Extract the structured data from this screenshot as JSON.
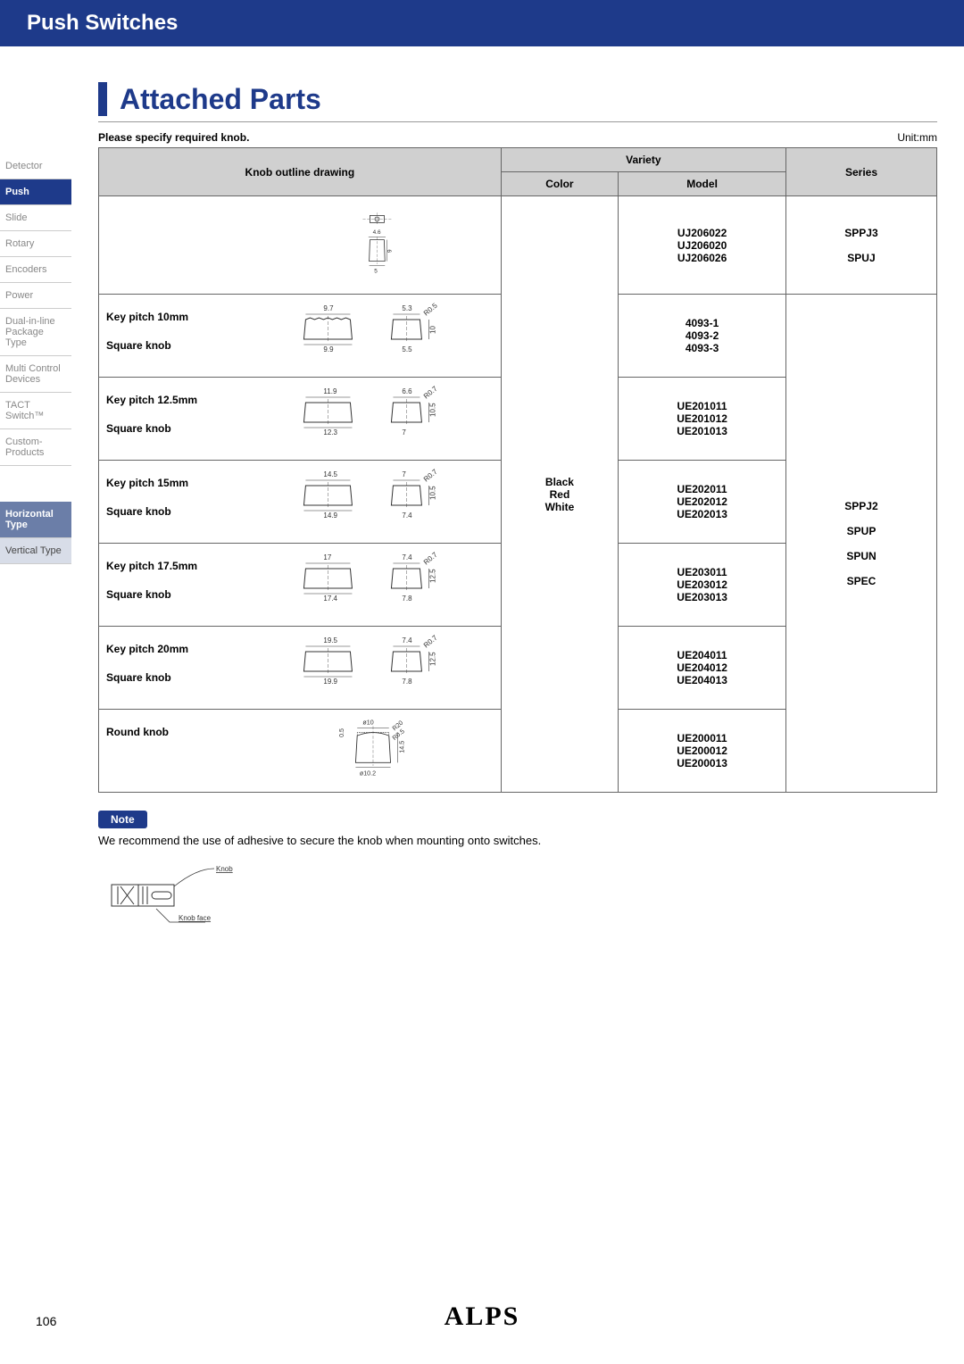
{
  "header": {
    "category": "Push Switches"
  },
  "section": {
    "title": "Attached Parts"
  },
  "tableMeta": {
    "caption": "Please specify required knob.",
    "unit": "Unit:mm"
  },
  "columns": {
    "knob": "Knob outline drawing",
    "variety": "Variety",
    "color": "Color",
    "model": "Model",
    "series": "Series"
  },
  "sidebar": {
    "items": [
      {
        "label": "Detector",
        "active": false
      },
      {
        "label": "Push",
        "active": true
      },
      {
        "label": "Slide",
        "active": false
      },
      {
        "label": "Rotary",
        "active": false
      },
      {
        "label": "Encoders",
        "active": false
      },
      {
        "label": "Power",
        "active": false
      },
      {
        "label": "Dual-in-line Package Type",
        "active": false
      },
      {
        "label": "Multi Control Devices",
        "active": false
      },
      {
        "label": "TACT Switch™",
        "active": false
      },
      {
        "label": "Custom-Products",
        "active": false
      }
    ],
    "sub": [
      {
        "label": "Horizontal Type",
        "kind": "sub-active"
      },
      {
        "label": "Vertical Type",
        "kind": "sub"
      }
    ]
  },
  "colorValues": "Black\nRed\nWhite",
  "rows": [
    {
      "labels": [],
      "dims": {
        "w1": "4.6",
        "h1": "9",
        "w2": "5"
      },
      "models": "UJ206022\nUJ206020\nUJ206026",
      "series": "SPPJ3\n\nSPUJ"
    },
    {
      "labels": [
        "Key pitch 10mm",
        "Square knob"
      ],
      "dims": {
        "w1": "9.7",
        "w2": "9.9",
        "s1": "5.3",
        "s2": "5.5",
        "h": "10",
        "r": "R0.5"
      },
      "models": "4093-1\n4093-2\n4093-3"
    },
    {
      "labels": [
        "Key pitch 12.5mm",
        "Square knob"
      ],
      "dims": {
        "w1": "11.9",
        "w2": "12.3",
        "s1": "6.6",
        "s2": "7",
        "h": "10.5",
        "r": "R0.7"
      },
      "models": "UE201011\nUE201012\nUE201013"
    },
    {
      "labels": [
        "Key pitch 15mm",
        "Square knob"
      ],
      "dims": {
        "w1": "14.5",
        "w2": "14.9",
        "s1": "7",
        "s2": "7.4",
        "h": "10.5",
        "r": "R0.7"
      },
      "models": "UE202011\nUE202012\nUE202013"
    },
    {
      "labels": [
        "Key pitch 17.5mm",
        "Square knob"
      ],
      "dims": {
        "w1": "17",
        "w2": "17.4",
        "s1": "7.4",
        "s2": "7.8",
        "h": "12.5",
        "r": "R0.7"
      },
      "models": "UE203011\nUE203012\nUE203013"
    },
    {
      "labels": [
        "Key pitch 20mm",
        "Square knob"
      ],
      "dims": {
        "w1": "19.5",
        "w2": "19.9",
        "s1": "7.4",
        "s2": "7.8",
        "h": "12.5",
        "r": "R0.7"
      },
      "models": "UE204011\nUE204012\nUE204013"
    },
    {
      "labels": [
        "Round knob"
      ],
      "dims": {
        "d1": "ø10",
        "d2": "ø10.2",
        "h": "14.5",
        "r1": "R20",
        "r2": "R0.5",
        "off": "0.5"
      },
      "models": "UE200011\nUE200012\nUE200013"
    }
  ],
  "seriesGroup": "SPPJ2\n\nSPUP\n\nSPUN\n\nSPEC",
  "note": {
    "badge": "Note",
    "text": "We recommend the use of adhesive to secure the knob when mounting onto switches.",
    "knob": "Knob",
    "knobFace": "Knob face"
  },
  "page": "106",
  "brand": "ALPS"
}
